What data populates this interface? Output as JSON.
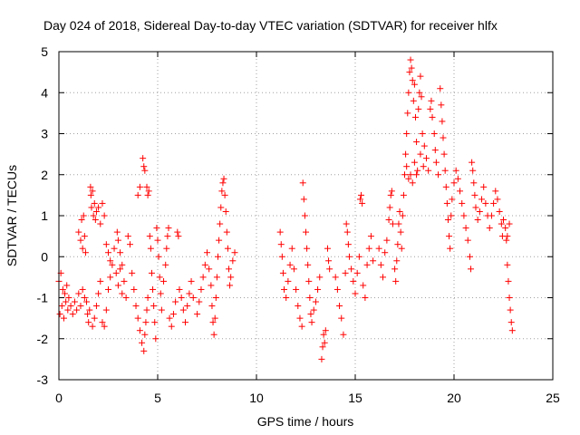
{
  "chart_data": {
    "type": "scatter",
    "title": "Day 024 of 2018, Sidereal Day-to-day VTEC variation (SDTVAR) for receiver hlfx",
    "xlabel": "GPS time / hours",
    "ylabel": "SDTVAR / TECUs",
    "xlim": [
      0,
      25
    ],
    "ylim": [
      -3,
      5
    ],
    "xticks": [
      "0",
      "5",
      "10",
      "15",
      "20",
      "25"
    ],
    "yticks": [
      "-3",
      "-2",
      "-1",
      "0",
      "1",
      "2",
      "3",
      "4",
      "5"
    ],
    "grid": true,
    "marker": "+",
    "color": "#ff0000",
    "series": [
      {
        "name": "SDTVAR",
        "points": [
          [
            0.0,
            -0.6
          ],
          [
            0.05,
            -1.4
          ],
          [
            0.1,
            -0.4
          ],
          [
            0.15,
            -1.2
          ],
          [
            0.2,
            -0.8
          ],
          [
            0.25,
            -1.5
          ],
          [
            0.3,
            -0.9
          ],
          [
            0.35,
            -1.1
          ],
          [
            0.4,
            -0.7
          ],
          [
            0.45,
            -1.3
          ],
          [
            0.5,
            -1.0
          ],
          [
            0.6,
            -1.2
          ],
          [
            0.7,
            -1.4
          ],
          [
            0.8,
            -1.1
          ],
          [
            0.9,
            -1.3
          ],
          [
            1.0,
            -0.9
          ],
          [
            1.1,
            -1.2
          ],
          [
            1.2,
            -0.8
          ],
          [
            1.3,
            -1.0
          ],
          [
            1.4,
            -1.1
          ],
          [
            1.0,
            0.6
          ],
          [
            1.1,
            0.4
          ],
          [
            1.15,
            0.9
          ],
          [
            1.2,
            0.2
          ],
          [
            1.25,
            1.0
          ],
          [
            1.3,
            0.5
          ],
          [
            1.35,
            0.1
          ],
          [
            1.45,
            -1.4
          ],
          [
            1.5,
            -1.6
          ],
          [
            1.55,
            -1.3
          ],
          [
            1.6,
            1.7
          ],
          [
            1.62,
            1.5
          ],
          [
            1.65,
            1.2
          ],
          [
            1.7,
            1.6
          ],
          [
            1.75,
            1.0
          ],
          [
            1.8,
            1.3
          ],
          [
            1.85,
            0.9
          ],
          [
            1.9,
            1.1
          ],
          [
            2.0,
            1.2
          ],
          [
            2.1,
            0.8
          ],
          [
            2.2,
            1.3
          ],
          [
            2.3,
            1.0
          ],
          [
            1.7,
            -1.7
          ],
          [
            1.8,
            -1.5
          ],
          [
            1.9,
            -1.2
          ],
          [
            2.0,
            -0.9
          ],
          [
            2.1,
            -0.6
          ],
          [
            2.2,
            -1.6
          ],
          [
            2.3,
            -1.7
          ],
          [
            2.4,
            -1.3
          ],
          [
            2.5,
            -0.8
          ],
          [
            2.6,
            -0.5
          ],
          [
            2.7,
            -0.2
          ],
          [
            2.8,
            0.2
          ],
          [
            2.9,
            -0.4
          ],
          [
            3.0,
            -0.7
          ],
          [
            3.1,
            -0.3
          ],
          [
            3.2,
            -0.9
          ],
          [
            3.3,
            -0.6
          ],
          [
            3.4,
            -1.0
          ],
          [
            2.4,
            0.3
          ],
          [
            2.5,
            0.1
          ],
          [
            2.6,
            -0.1
          ],
          [
            2.95,
            0.6
          ],
          [
            3.0,
            0.4
          ],
          [
            3.1,
            0.1
          ],
          [
            3.2,
            -0.2
          ],
          [
            3.5,
            0.5
          ],
          [
            3.6,
            0.3
          ],
          [
            3.7,
            -0.4
          ],
          [
            3.8,
            -0.8
          ],
          [
            3.9,
            -1.2
          ],
          [
            4.0,
            -1.5
          ],
          [
            4.1,
            -1.8
          ],
          [
            4.2,
            -2.1
          ],
          [
            4.3,
            -2.3
          ],
          [
            4.35,
            -1.9
          ],
          [
            4.4,
            -1.6
          ],
          [
            4.45,
            -1.3
          ],
          [
            4.5,
            -1.0
          ],
          [
            4.0,
            1.5
          ],
          [
            4.1,
            1.7
          ],
          [
            4.25,
            2.4
          ],
          [
            4.3,
            2.2
          ],
          [
            4.35,
            2.1
          ],
          [
            4.45,
            1.7
          ],
          [
            4.5,
            1.5
          ],
          [
            4.55,
            1.6
          ],
          [
            4.6,
            0.5
          ],
          [
            4.65,
            0.2
          ],
          [
            4.7,
            -0.4
          ],
          [
            4.75,
            -0.8
          ],
          [
            4.8,
            -1.2
          ],
          [
            4.85,
            -1.6
          ],
          [
            4.9,
            -2.0
          ],
          [
            4.95,
            0.7
          ],
          [
            5.0,
            0.4
          ],
          [
            5.05,
            0.0
          ],
          [
            5.1,
            -0.5
          ],
          [
            5.15,
            -0.9
          ],
          [
            5.2,
            -1.3
          ],
          [
            5.3,
            -0.6
          ],
          [
            5.4,
            -0.2
          ],
          [
            5.45,
            0.2
          ],
          [
            5.5,
            0.5
          ],
          [
            5.55,
            0.7
          ],
          [
            5.6,
            -1.5
          ],
          [
            5.7,
            -1.7
          ],
          [
            5.8,
            -1.4
          ],
          [
            5.9,
            -1.1
          ],
          [
            6.0,
            0.6
          ],
          [
            6.05,
            0.5
          ],
          [
            6.1,
            -0.8
          ],
          [
            6.2,
            -1.0
          ],
          [
            6.3,
            -1.3
          ],
          [
            6.4,
            -1.6
          ],
          [
            6.5,
            -1.2
          ],
          [
            6.6,
            -0.9
          ],
          [
            6.7,
            -0.6
          ],
          [
            6.8,
            -1.0
          ],
          [
            7.0,
            -1.4
          ],
          [
            7.1,
            -1.1
          ],
          [
            7.2,
            -0.8
          ],
          [
            7.3,
            -0.5
          ],
          [
            7.4,
            -0.2
          ],
          [
            7.5,
            0.1
          ],
          [
            7.6,
            -0.3
          ],
          [
            7.7,
            -0.7
          ],
          [
            7.75,
            -1.2
          ],
          [
            7.8,
            -1.6
          ],
          [
            7.85,
            -1.9
          ],
          [
            7.9,
            -1.5
          ],
          [
            7.95,
            -1.0
          ],
          [
            8.0,
            -0.5
          ],
          [
            8.05,
            0.0
          ],
          [
            8.1,
            0.4
          ],
          [
            8.15,
            0.8
          ],
          [
            8.2,
            1.2
          ],
          [
            8.25,
            1.6
          ],
          [
            8.3,
            1.8
          ],
          [
            8.35,
            1.9
          ],
          [
            8.4,
            1.5
          ],
          [
            8.45,
            1.1
          ],
          [
            8.5,
            0.6
          ],
          [
            8.55,
            0.2
          ],
          [
            8.6,
            -0.3
          ],
          [
            8.65,
            -0.7
          ],
          [
            8.7,
            -0.5
          ],
          [
            8.8,
            -0.1
          ],
          [
            8.9,
            0.1
          ],
          [
            11.2,
            0.6
          ],
          [
            11.25,
            0.3
          ],
          [
            11.3,
            0.0
          ],
          [
            11.35,
            -0.4
          ],
          [
            11.4,
            -0.8
          ],
          [
            11.5,
            -1.0
          ],
          [
            11.6,
            -0.6
          ],
          [
            11.7,
            -0.2
          ],
          [
            11.8,
            0.2
          ],
          [
            11.9,
            -0.3
          ],
          [
            12.0,
            -0.8
          ],
          [
            12.1,
            -1.2
          ],
          [
            12.2,
            -1.5
          ],
          [
            12.3,
            -1.7
          ],
          [
            12.35,
            1.8
          ],
          [
            12.4,
            1.4
          ],
          [
            12.45,
            1.0
          ],
          [
            12.5,
            0.6
          ],
          [
            12.55,
            0.2
          ],
          [
            12.6,
            -0.2
          ],
          [
            12.65,
            -0.6
          ],
          [
            12.7,
            -1.0
          ],
          [
            12.75,
            -1.4
          ],
          [
            12.8,
            -1.6
          ],
          [
            12.9,
            -1.3
          ],
          [
            13.0,
            -1.1
          ],
          [
            13.1,
            -0.8
          ],
          [
            13.2,
            -0.5
          ],
          [
            13.3,
            -2.5
          ],
          [
            13.35,
            -2.2
          ],
          [
            13.4,
            -1.9
          ],
          [
            13.45,
            -2.1
          ],
          [
            13.5,
            -1.8
          ],
          [
            13.6,
            0.2
          ],
          [
            13.65,
            -0.1
          ],
          [
            13.7,
            -0.3
          ],
          [
            14.0,
            -0.5
          ],
          [
            14.1,
            -0.8
          ],
          [
            14.2,
            -1.2
          ],
          [
            14.3,
            -1.5
          ],
          [
            14.4,
            -1.9
          ],
          [
            14.5,
            -0.4
          ],
          [
            14.55,
            0.8
          ],
          [
            14.6,
            0.6
          ],
          [
            14.65,
            0.3
          ],
          [
            14.7,
            0.0
          ],
          [
            14.8,
            -0.3
          ],
          [
            14.9,
            -0.6
          ],
          [
            15.0,
            -0.9
          ],
          [
            15.1,
            -0.4
          ],
          [
            15.2,
            0.0
          ],
          [
            15.25,
            1.4
          ],
          [
            15.3,
            1.5
          ],
          [
            15.35,
            1.3
          ],
          [
            15.4,
            -0.7
          ],
          [
            15.5,
            -1.0
          ],
          [
            15.6,
            -0.2
          ],
          [
            15.7,
            0.2
          ],
          [
            15.8,
            0.5
          ],
          [
            15.9,
            -0.1
          ],
          [
            16.2,
            0.2
          ],
          [
            16.3,
            -0.2
          ],
          [
            16.4,
            -0.5
          ],
          [
            16.5,
            0.1
          ],
          [
            16.6,
            0.4
          ],
          [
            16.7,
            0.9
          ],
          [
            16.75,
            1.2
          ],
          [
            16.8,
            1.5
          ],
          [
            16.85,
            1.6
          ],
          [
            16.9,
            0.8
          ],
          [
            17.0,
            -0.3
          ],
          [
            17.05,
            -0.6
          ],
          [
            17.1,
            -0.1
          ],
          [
            17.15,
            0.3
          ],
          [
            17.2,
            0.8
          ],
          [
            17.25,
            1.1
          ],
          [
            17.3,
            0.6
          ],
          [
            17.35,
            0.2
          ],
          [
            17.4,
            1.0
          ],
          [
            17.45,
            1.5
          ],
          [
            17.5,
            2.0
          ],
          [
            17.55,
            2.5
          ],
          [
            17.6,
            3.0
          ],
          [
            17.65,
            3.5
          ],
          [
            17.7,
            4.0
          ],
          [
            17.75,
            4.5
          ],
          [
            17.8,
            4.8
          ],
          [
            17.85,
            4.6
          ],
          [
            17.9,
            4.3
          ],
          [
            17.95,
            3.8
          ],
          [
            18.0,
            4.2
          ],
          [
            18.05,
            3.4
          ],
          [
            18.1,
            2.8
          ],
          [
            18.15,
            2.1
          ],
          [
            18.2,
            3.6
          ],
          [
            18.25,
            4.0
          ],
          [
            18.3,
            4.4
          ],
          [
            18.35,
            3.9
          ],
          [
            18.4,
            3.0
          ],
          [
            18.45,
            2.2
          ],
          [
            17.6,
            2.2
          ],
          [
            17.7,
            1.9
          ],
          [
            17.8,
            2.0
          ],
          [
            17.9,
            1.8
          ],
          [
            18.0,
            2.3
          ],
          [
            18.1,
            2.0
          ],
          [
            18.3,
            2.5
          ],
          [
            18.5,
            2.7
          ],
          [
            18.6,
            2.4
          ],
          [
            18.7,
            2.1
          ],
          [
            18.8,
            3.6
          ],
          [
            18.85,
            3.8
          ],
          [
            18.9,
            3.4
          ],
          [
            19.0,
            3.0
          ],
          [
            19.05,
            2.6
          ],
          [
            19.1,
            2.3
          ],
          [
            19.2,
            2.0
          ],
          [
            19.3,
            4.1
          ],
          [
            19.35,
            3.7
          ],
          [
            19.4,
            3.3
          ],
          [
            19.45,
            2.9
          ],
          [
            19.5,
            2.5
          ],
          [
            19.55,
            2.1
          ],
          [
            19.6,
            1.7
          ],
          [
            19.65,
            1.3
          ],
          [
            19.7,
            0.9
          ],
          [
            19.75,
            0.5
          ],
          [
            19.8,
            0.2
          ],
          [
            19.85,
            1.0
          ],
          [
            19.9,
            1.4
          ],
          [
            20.0,
            1.8
          ],
          [
            20.1,
            2.1
          ],
          [
            20.2,
            1.9
          ],
          [
            20.3,
            1.6
          ],
          [
            20.4,
            1.3
          ],
          [
            20.5,
            1.0
          ],
          [
            20.6,
            0.7
          ],
          [
            20.7,
            0.4
          ],
          [
            20.8,
            0.0
          ],
          [
            20.85,
            -0.3
          ],
          [
            20.9,
            2.3
          ],
          [
            20.95,
            2.1
          ],
          [
            21.0,
            1.8
          ],
          [
            21.05,
            1.5
          ],
          [
            21.1,
            1.2
          ],
          [
            21.2,
            0.9
          ],
          [
            21.3,
            1.1
          ],
          [
            21.4,
            1.4
          ],
          [
            21.5,
            1.7
          ],
          [
            21.6,
            1.3
          ],
          [
            21.7,
            1.0
          ],
          [
            21.8,
            0.7
          ],
          [
            21.9,
            1.0
          ],
          [
            22.0,
            1.3
          ],
          [
            22.1,
            1.6
          ],
          [
            22.2,
            1.4
          ],
          [
            22.3,
            1.1
          ],
          [
            22.4,
            0.8
          ],
          [
            22.45,
            0.5
          ],
          [
            22.5,
            0.9
          ],
          [
            22.6,
            0.7
          ],
          [
            22.65,
            0.4
          ],
          [
            22.7,
            -0.2
          ],
          [
            22.75,
            -0.6
          ],
          [
            22.8,
            -1.0
          ],
          [
            22.85,
            -1.3
          ],
          [
            22.9,
            -1.6
          ],
          [
            22.95,
            -1.8
          ],
          [
            22.7,
            0.5
          ],
          [
            22.8,
            0.8
          ]
        ]
      }
    ]
  }
}
